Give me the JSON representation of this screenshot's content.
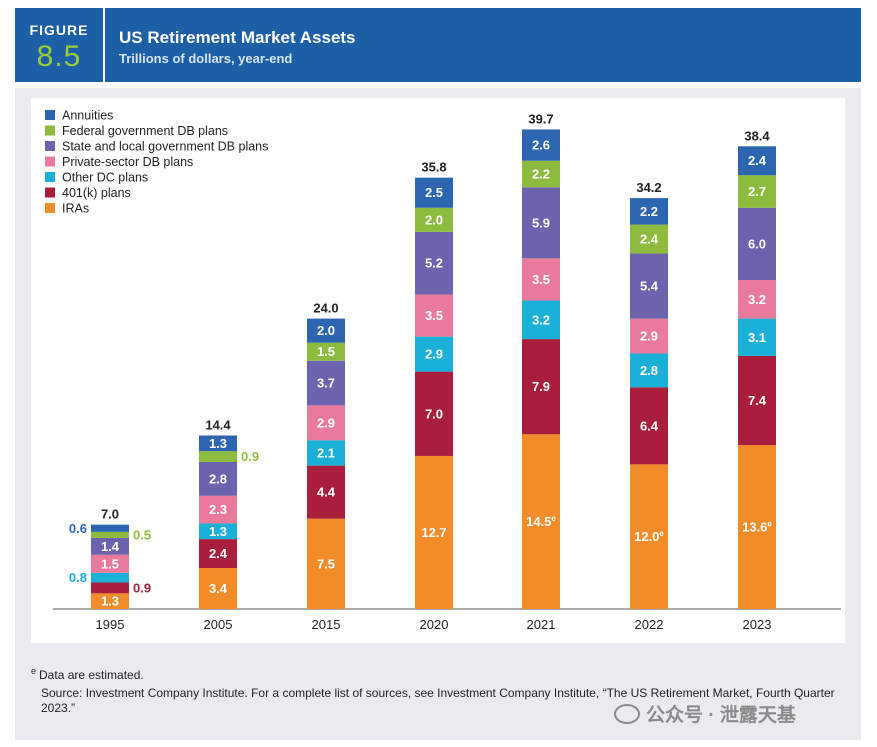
{
  "figure": {
    "label": "FIGURE",
    "number": "8.5"
  },
  "header": {
    "title": "US Retirement Market Assets",
    "subtitle": "Trillions of dollars, year-end"
  },
  "chart_data": {
    "type": "bar",
    "stacked": true,
    "title": "US Retirement Market Assets",
    "subtitle": "Trillions of dollars, year-end",
    "xlabel": "",
    "ylabel": "",
    "ylim": [
      0,
      40
    ],
    "legend_position": "top-left",
    "categories": [
      "1995",
      "2005",
      "2015",
      "2020",
      "2021",
      "2022",
      "2023"
    ],
    "totals": [
      "7.0",
      "14.4",
      "24.0",
      "35.8",
      "39.7",
      "34.2",
      "38.4"
    ],
    "series": [
      {
        "name": "IRAs",
        "color": "#f28c28",
        "values": [
          1.3,
          3.4,
          7.5,
          12.7,
          14.5,
          12.0,
          13.6
        ],
        "labels": [
          "1.3",
          "3.4",
          "7.5",
          "12.7",
          "14.5",
          "12.0",
          "13.6"
        ],
        "estimated": [
          false,
          false,
          false,
          false,
          true,
          true,
          true
        ]
      },
      {
        "name": "401(k) plans",
        "color": "#a81e3c",
        "values": [
          0.9,
          2.4,
          4.4,
          7.0,
          7.9,
          6.4,
          7.4
        ],
        "labels": [
          "0.9",
          "2.4",
          "4.4",
          "7.0",
          "7.9",
          "6.4",
          "7.4"
        ]
      },
      {
        "name": "Other DC plans",
        "color": "#1ab0d8",
        "values": [
          0.8,
          1.3,
          2.1,
          2.9,
          3.2,
          2.8,
          3.1
        ],
        "labels": [
          "0.8",
          "1.3",
          "2.1",
          "2.9",
          "3.2",
          "2.8",
          "3.1"
        ]
      },
      {
        "name": "Private-sector DB plans",
        "color": "#ea7a9c",
        "values": [
          1.5,
          2.3,
          2.9,
          3.5,
          3.5,
          2.9,
          3.2
        ],
        "labels": [
          "1.5",
          "2.3",
          "2.9",
          "3.5",
          "3.5",
          "2.9",
          "3.2"
        ]
      },
      {
        "name": "State and local government DB plans",
        "color": "#6b63ad",
        "values": [
          1.4,
          2.8,
          3.7,
          5.2,
          5.9,
          5.4,
          6.0
        ],
        "labels": [
          "1.4",
          "2.8",
          "3.7",
          "5.2",
          "5.9",
          "5.4",
          "6.0"
        ]
      },
      {
        "name": "Federal government DB plans",
        "color": "#8dbb3e",
        "values": [
          0.5,
          0.9,
          1.5,
          2.0,
          2.2,
          2.4,
          2.7
        ],
        "labels": [
          "0.5",
          "0.9",
          "1.5",
          "2.0",
          "2.2",
          "2.4",
          "2.7"
        ]
      },
      {
        "name": "Annuities",
        "color": "#2d66b0",
        "values": [
          0.6,
          1.3,
          2.0,
          2.5,
          2.6,
          2.2,
          2.4
        ],
        "labels": [
          "0.6",
          "1.3",
          "2.0",
          "2.5",
          "2.6",
          "2.2",
          "2.4"
        ]
      }
    ]
  },
  "footnote": {
    "marker": "e",
    "text": "Data are estimated."
  },
  "source": "Source: Investment Company Institute. For a complete list of sources, see Investment Company Institute, “The US Retirement Market, Fourth Quarter 2023.”",
  "watermark": "公众号 · 泄露天基"
}
